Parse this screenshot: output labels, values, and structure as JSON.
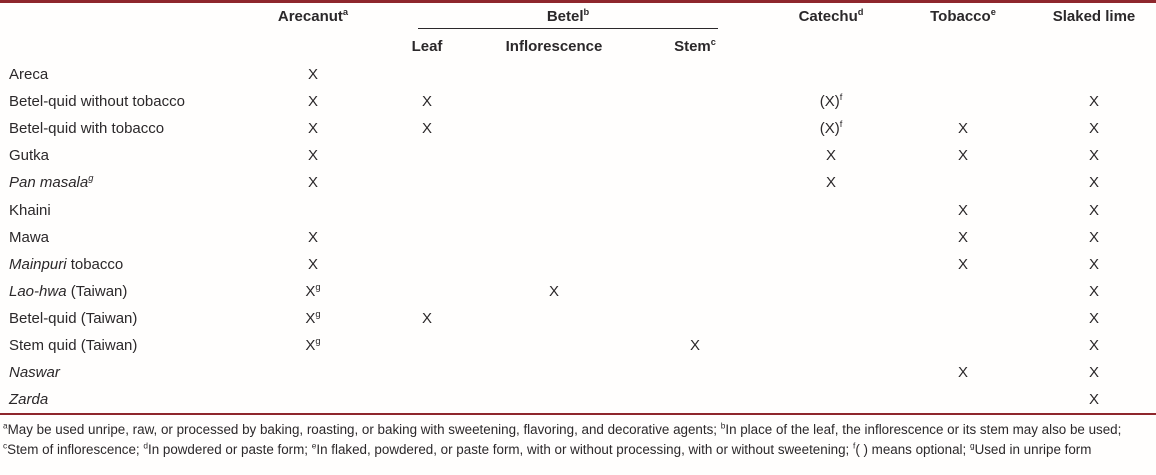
{
  "colors": {
    "rule": "#8e262c",
    "text": "#2b282a"
  },
  "table": {
    "group_header": {
      "text": "Betel",
      "sup": "b"
    },
    "columns": [
      {
        "key": "product",
        "text": "",
        "sup": ""
      },
      {
        "key": "arecanut",
        "text": "Arecanut",
        "sup": "a"
      },
      {
        "key": "leaf",
        "text": "Leaf",
        "sup": "",
        "group": "betel"
      },
      {
        "key": "inflorescence",
        "text": "Inflorescence",
        "sup": "",
        "group": "betel"
      },
      {
        "key": "stem",
        "text": "Stem",
        "sup": "c",
        "group": "betel"
      },
      {
        "key": "catechu",
        "text": "Catechu",
        "sup": "d"
      },
      {
        "key": "tobacco",
        "text": "Tobacco",
        "sup": "e"
      },
      {
        "key": "slaked_lime",
        "text": "Slaked lime",
        "sup": ""
      }
    ],
    "rows": [
      {
        "label": [
          {
            "t": "Areca"
          }
        ],
        "cells": [
          "X",
          "",
          "",
          "",
          "",
          "",
          ""
        ]
      },
      {
        "label": [
          {
            "t": "Betel-quid without tobacco"
          }
        ],
        "cells": [
          "X",
          "X",
          "",
          "",
          "(X)^f",
          "",
          "X"
        ]
      },
      {
        "label": [
          {
            "t": "Betel-quid with tobacco"
          }
        ],
        "cells": [
          "X",
          "X",
          "",
          "",
          "(X)^f",
          "X",
          "X"
        ]
      },
      {
        "label": [
          {
            "t": "Gutka"
          }
        ],
        "cells": [
          "X",
          "",
          "",
          "",
          "X",
          "X",
          "X"
        ]
      },
      {
        "label": [
          {
            "t": "Pan masala",
            "i": true,
            "s": "g"
          }
        ],
        "cells": [
          "X",
          "",
          "",
          "",
          "X",
          "",
          "X"
        ]
      },
      {
        "label": [
          {
            "t": "Khaini"
          }
        ],
        "cells": [
          "",
          "",
          "",
          "",
          "",
          "X",
          "X"
        ]
      },
      {
        "label": [
          {
            "t": "Mawa"
          }
        ],
        "cells": [
          "X",
          "",
          "",
          "",
          "",
          "X",
          "X"
        ]
      },
      {
        "label": [
          {
            "t": "Mainpuri",
            "i": true
          },
          {
            "t": " tobacco"
          }
        ],
        "cells": [
          "X",
          "",
          "",
          "",
          "",
          "X",
          "X"
        ]
      },
      {
        "label": [
          {
            "t": "Lao-hwa",
            "i": true
          },
          {
            "t": " (Taiwan)"
          }
        ],
        "cells": [
          "X^g",
          "",
          "X",
          "",
          "",
          "",
          "X"
        ]
      },
      {
        "label": [
          {
            "t": "Betel-quid (Taiwan)"
          }
        ],
        "cells": [
          "X^g",
          "X",
          "",
          "",
          "",
          "",
          "X"
        ]
      },
      {
        "label": [
          {
            "t": "Stem quid (Taiwan)"
          }
        ],
        "cells": [
          "X^g",
          "",
          "",
          "X",
          "",
          "",
          "X"
        ]
      },
      {
        "label": [
          {
            "t": "Naswar",
            "i": true
          }
        ],
        "cells": [
          "",
          "",
          "",
          "",
          "",
          "X",
          "X"
        ]
      },
      {
        "label": [
          {
            "t": "Zarda",
            "i": true
          }
        ],
        "cells": [
          "",
          "",
          "",
          "",
          "",
          "",
          "X"
        ]
      }
    ]
  },
  "footnotes": [
    {
      "sup": "a",
      "text": "May be used unripe, raw, or processed by baking, roasting, or baking with sweetening, flavoring, and decorative agents"
    },
    {
      "sup": "b",
      "text": "In place of the leaf, the inflorescence or its stem may also be used"
    },
    {
      "sup": "c",
      "text": "Stem of inflorescence"
    },
    {
      "sup": "d",
      "text": "In powdered or paste form"
    },
    {
      "sup": "e",
      "text": "In flaked, powdered, or paste form, with or without processing, with or without sweetening"
    },
    {
      "sup": "f",
      "text": "( ) means optional"
    },
    {
      "sup": "g",
      "text": "Used in unripe form"
    }
  ]
}
